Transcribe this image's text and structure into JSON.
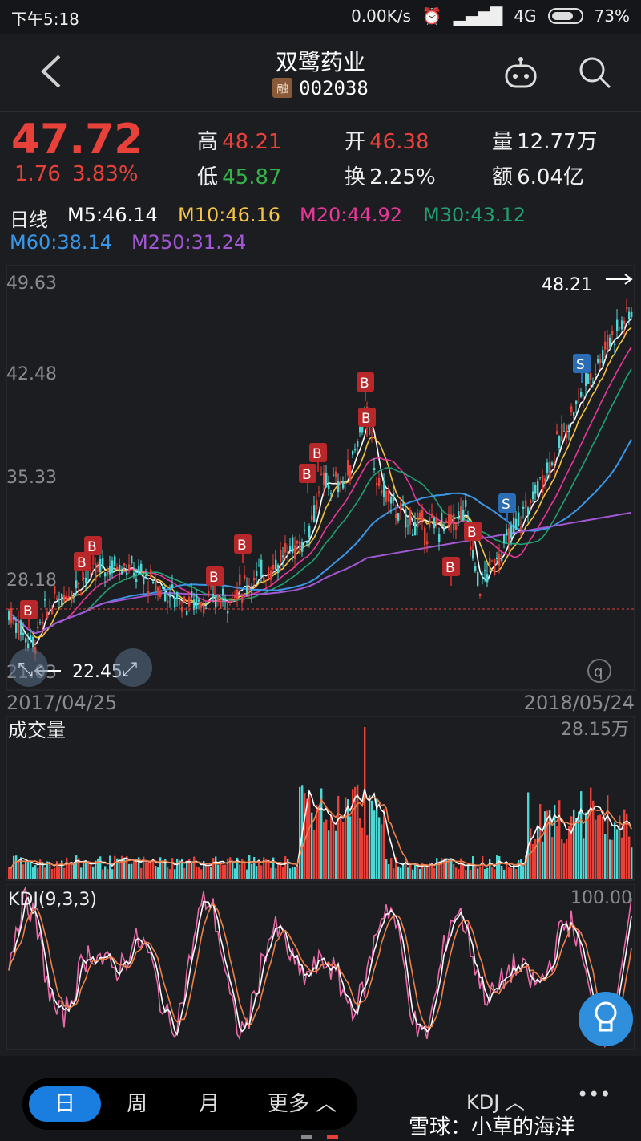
{
  "status_bar": {
    "time": "下午5:18",
    "speed": "0.00K/s",
    "network": "4G",
    "battery": "73%"
  },
  "header": {
    "name": "双鹭药业",
    "tag": "融",
    "code": "002038"
  },
  "quote": {
    "price": "47.72",
    "change": "1.76",
    "change_pct": "3.83%",
    "high_label": "高",
    "high": "48.21",
    "low_label": "低",
    "low": "45.87",
    "open_label": "开",
    "open": "46.38",
    "turnover_label": "换",
    "turnover": "2.25%",
    "volume_label": "量",
    "volume": "12.77万",
    "amount_label": "额",
    "amount": "6.04亿"
  },
  "ma_legend": {
    "period": "日线",
    "items": [
      {
        "text": "M5:46.14",
        "color": "#ffffff"
      },
      {
        "text": "M10:46.16",
        "color": "#f6c343"
      },
      {
        "text": "M20:44.92",
        "color": "#e8379a"
      },
      {
        "text": "M30:43.12",
        "color": "#21a070"
      },
      {
        "text": "M60:38.14",
        "color": "#3a97e8"
      },
      {
        "text": "M250:31.24",
        "color": "#a258d4"
      }
    ]
  },
  "kline": {
    "y_ticks": [
      "49.63",
      "42.48",
      "35.33",
      "28.18",
      "21.03"
    ],
    "max_label": "48.21",
    "min_label": "22.45",
    "start_date": "2017/04/25",
    "end_date": "2018/05/24",
    "markers": [
      {
        "label": "B",
        "type": "buy"
      },
      {
        "label": "B",
        "type": "buy"
      },
      {
        "label": "B",
        "type": "buy"
      },
      {
        "label": "B",
        "type": "buy"
      },
      {
        "label": "B",
        "type": "buy"
      },
      {
        "label": "B",
        "type": "buy"
      },
      {
        "label": "B",
        "type": "buy"
      },
      {
        "label": "B",
        "type": "buy"
      },
      {
        "label": "B",
        "type": "buy"
      },
      {
        "label": "B",
        "type": "buy"
      },
      {
        "label": "B",
        "type": "buy"
      },
      {
        "label": "S",
        "type": "sell"
      },
      {
        "label": "S",
        "type": "sell"
      }
    ]
  },
  "volume": {
    "title": "成交量",
    "max_label": "28.15万"
  },
  "kdj": {
    "title": "KDJ(9,3,3)",
    "max_label": "100.00"
  },
  "bottom_bar": {
    "tabs": [
      "日",
      "周",
      "月",
      "更多 ︿"
    ],
    "indicator": "KDJ ︿",
    "more": "•••",
    "watermark": "雪球：小草的海洋"
  }
}
